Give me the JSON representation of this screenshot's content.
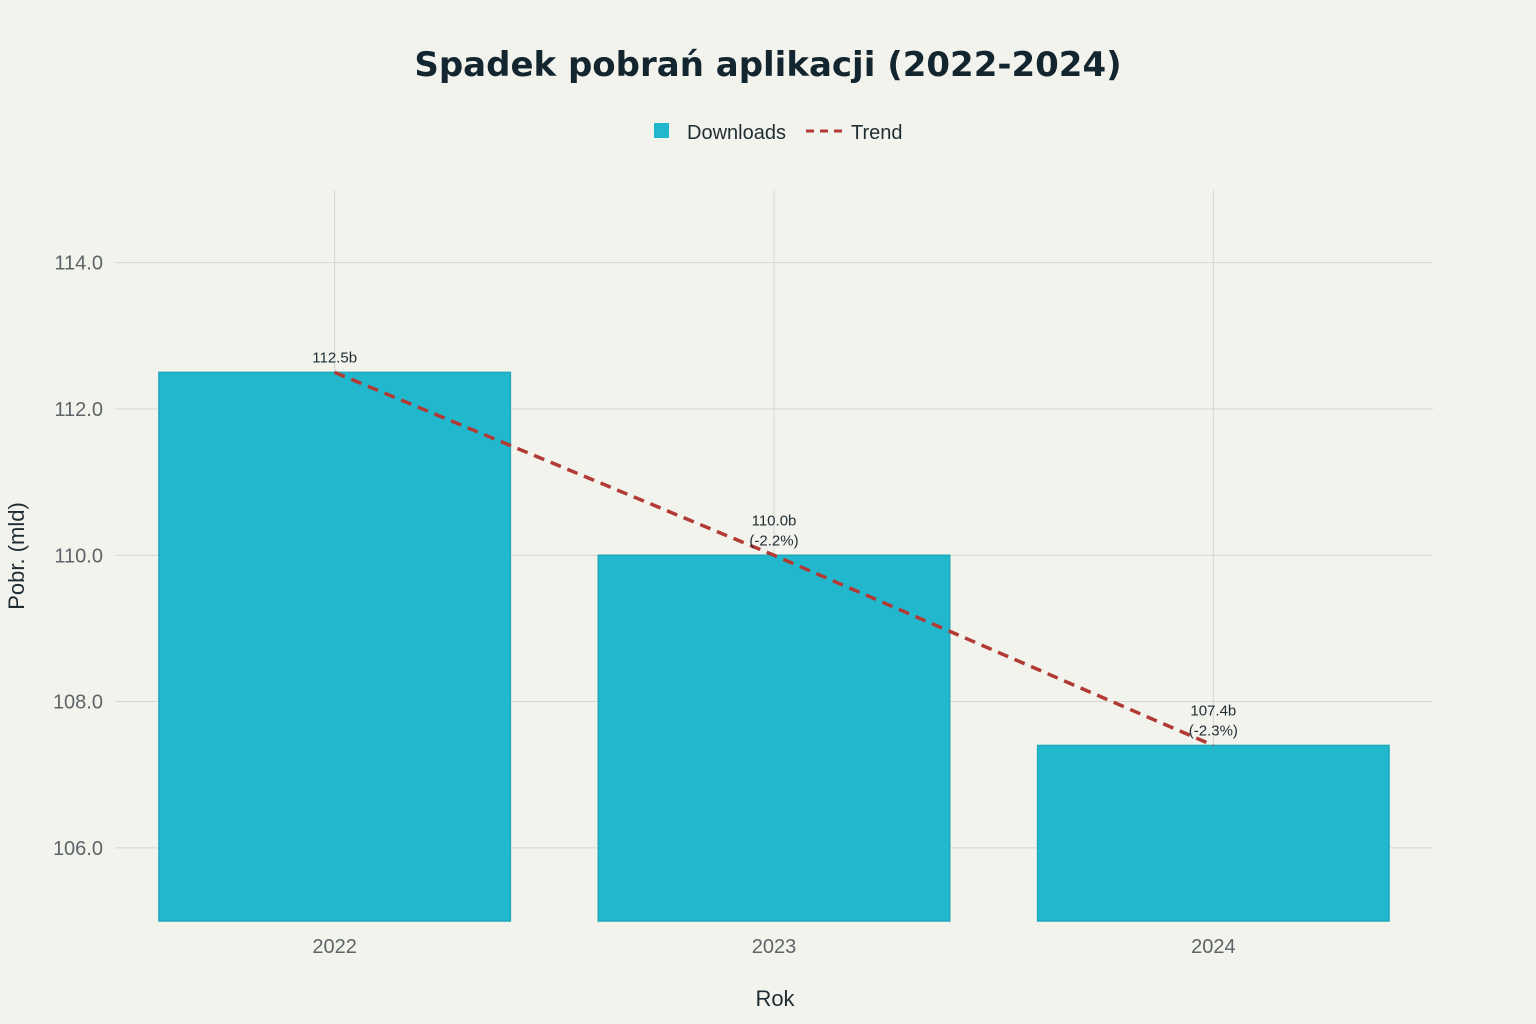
{
  "chart_data": {
    "type": "bar",
    "title": "Spadek pobrań aplikacji (2022-2024)",
    "xlabel": "Rok",
    "ylabel": "Pobr. (mld)",
    "categories": [
      "2022",
      "2023",
      "2024"
    ],
    "series": [
      {
        "name": "Downloads",
        "type": "bar",
        "values": [
          112.5,
          110.0,
          107.4
        ],
        "color": "#21b8cd"
      },
      {
        "name": "Trend",
        "type": "line",
        "style": "dashed",
        "values": [
          112.5,
          110.0,
          107.4
        ],
        "color": "#b23a35"
      }
    ],
    "data_labels": [
      [
        "112.5b"
      ],
      [
        "110.0b",
        "(-2.2%)"
      ],
      [
        "107.4b",
        "(-2.3%)"
      ]
    ],
    "ylim": [
      105.0,
      115.0
    ],
    "yticks": [
      "106.0",
      "108.0",
      "110.0",
      "112.0",
      "114.0"
    ],
    "grid": true,
    "legend_position": "top-center"
  }
}
